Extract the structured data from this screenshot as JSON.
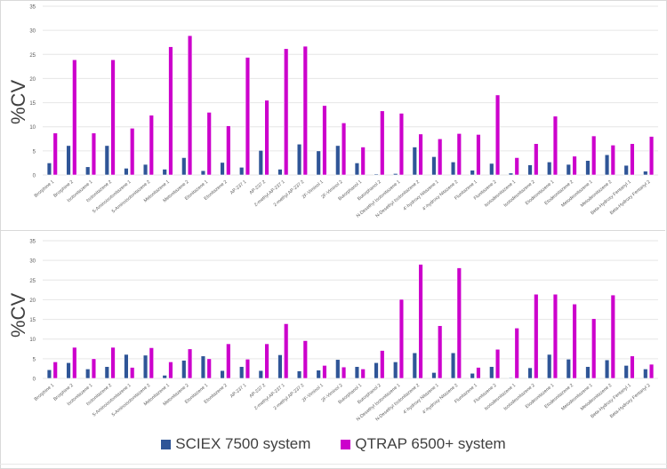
{
  "colors": {
    "sciex": "#2F5597",
    "qtrap": "#CC00CC",
    "grid": "#e6e6e6",
    "tick": "#595959"
  },
  "legend": [
    {
      "label": "SCIEX 7500 system",
      "color": "#2F5597"
    },
    {
      "label": "QTRAP 6500+ system",
      "color": "#CC00CC"
    }
  ],
  "chart_data": [
    {
      "type": "bar",
      "title": "",
      "xlabel": "",
      "ylabel": "%CV",
      "ylim": [
        0,
        35
      ],
      "yticks": [
        0,
        5,
        10,
        15,
        20,
        25,
        30,
        35
      ],
      "grid": true,
      "legend_position": "bottom",
      "categories": [
        "Brorphine 1",
        "Brorphine 2",
        "Isotonitazene 1",
        "Isotonitazene 2",
        "5-Aminoisotonitazene 1",
        "5-Aminoisotonitazene 2",
        "Metonitazene 1",
        "Metonitazene 2",
        "Etonitazene 1",
        "Etonitazene 2",
        "AP-237 1",
        "AP-237 2",
        "2-methyl AP-237 1",
        "2-methyl AP-237 2",
        "2F-Viminol 1",
        "2F-Viminol 2",
        "Butorphanol 1",
        "Butorphanol 2",
        "N-Desethyl Isotonitazene 1",
        "N-Desethyl Isotonitazene 2",
        "4'-hydroxy Nitazene 1",
        "4'-hydroxy Nitazene 2",
        "Flunitazene 1",
        "Flunitazene 2",
        "Isotodesnitazene 1",
        "Isotodesnitazene 2",
        "Etodesnitazene 1",
        "Etodesnitazene 2",
        "Metodesnitazene 1",
        "Metodesnitazene 2",
        "Beta-Hydroxy Fentanyl 1",
        "Beta-Hydroxy Fentanyl 2"
      ],
      "series": [
        {
          "name": "SCIEX 7500 system",
          "values": [
            2.5,
            6.1,
            1.7,
            6.1,
            1.4,
            2.2,
            1.2,
            3.6,
            0.9,
            2.6,
            1.6,
            5.1,
            1.2,
            6.4,
            5.0,
            6.1,
            2.5,
            0.2,
            0.3,
            5.8,
            3.8,
            2.7,
            1.0,
            2.4,
            0.4,
            2.1,
            2.7,
            2.2,
            3.0,
            4.2,
            2.0,
            0.8
          ]
        },
        {
          "name": "QTRAP 6500+ system",
          "values": [
            8.7,
            23.9,
            8.7,
            23.9,
            9.7,
            12.4,
            26.6,
            28.9,
            13.0,
            10.2,
            24.4,
            15.5,
            26.2,
            26.7,
            14.4,
            10.8,
            5.8,
            13.3,
            12.8,
            8.5,
            7.5,
            8.6,
            8.4,
            16.6,
            3.6,
            6.5,
            12.2,
            3.9,
            8.1,
            6.2,
            6.5,
            8.0
          ]
        }
      ]
    },
    {
      "type": "bar",
      "title": "",
      "xlabel": "",
      "ylabel": "%CV",
      "ylim": [
        0,
        35
      ],
      "yticks": [
        0,
        5,
        10,
        15,
        20,
        25,
        30,
        35
      ],
      "grid": true,
      "legend_position": "bottom",
      "categories": [
        "Brorphine 1",
        "Brorphine 2",
        "Isotonitazene 1",
        "Isotonitazene 2",
        "5-Aminoisotonitazene 1",
        "5-Aminoisotonitazene 2",
        "Metonitazene 1",
        "Metonitazene 2",
        "Etonitazene 1",
        "Etonitazene 2",
        "AP-237 1",
        "AP-237 2",
        "2-methyl AP-237 1",
        "2-methyl AP-237 2",
        "2F-Viminol 1",
        "2F-Viminol 2",
        "Butorphanol 1",
        "Butorphanol 2",
        "N-Desethyl Isotonitazene 1",
        "N-Desethyl Isotonitazene 2",
        "4'-hydroxy Nitazene 1",
        "4'-hydroxy Nitazene 2",
        "Flunitazene 1",
        "Flunitazene 2",
        "Isotodesnitazene 1",
        "Isotodesnitazene 2",
        "Etodesnitazene 1",
        "Etodesnitazene 2",
        "Metodesnitazene 1",
        "Metodesnitazene 2",
        "Beta-Hydroxy Fentanyl 1",
        "Beta-Hydroxy Fentanyl 2"
      ],
      "series": [
        {
          "name": "SCIEX 7500 system",
          "values": [
            2.2,
            4.0,
            2.4,
            3.0,
            6.1,
            5.9,
            0.8,
            4.6,
            5.7,
            2.0,
            3.0,
            2.0,
            6.0,
            1.9,
            2.1,
            4.8,
            3.0,
            4.0,
            4.2,
            6.5,
            1.5,
            6.5,
            1.3,
            3.0,
            0.2,
            2.7,
            6.1,
            4.9,
            3.0,
            4.7,
            3.3,
            2.4
          ]
        },
        {
          "name": "QTRAP 6500+ system",
          "values": [
            4.2,
            7.9,
            5.0,
            7.9,
            2.8,
            7.8,
            4.2,
            7.5,
            5.0,
            8.8,
            4.9,
            8.8,
            13.9,
            9.6,
            3.3,
            2.9,
            2.4,
            7.1,
            20.1,
            29.0,
            13.4,
            28.1,
            2.8,
            7.4,
            12.8,
            21.4,
            21.4,
            18.9,
            15.2,
            21.2,
            5.7,
            3.6
          ]
        }
      ]
    }
  ]
}
